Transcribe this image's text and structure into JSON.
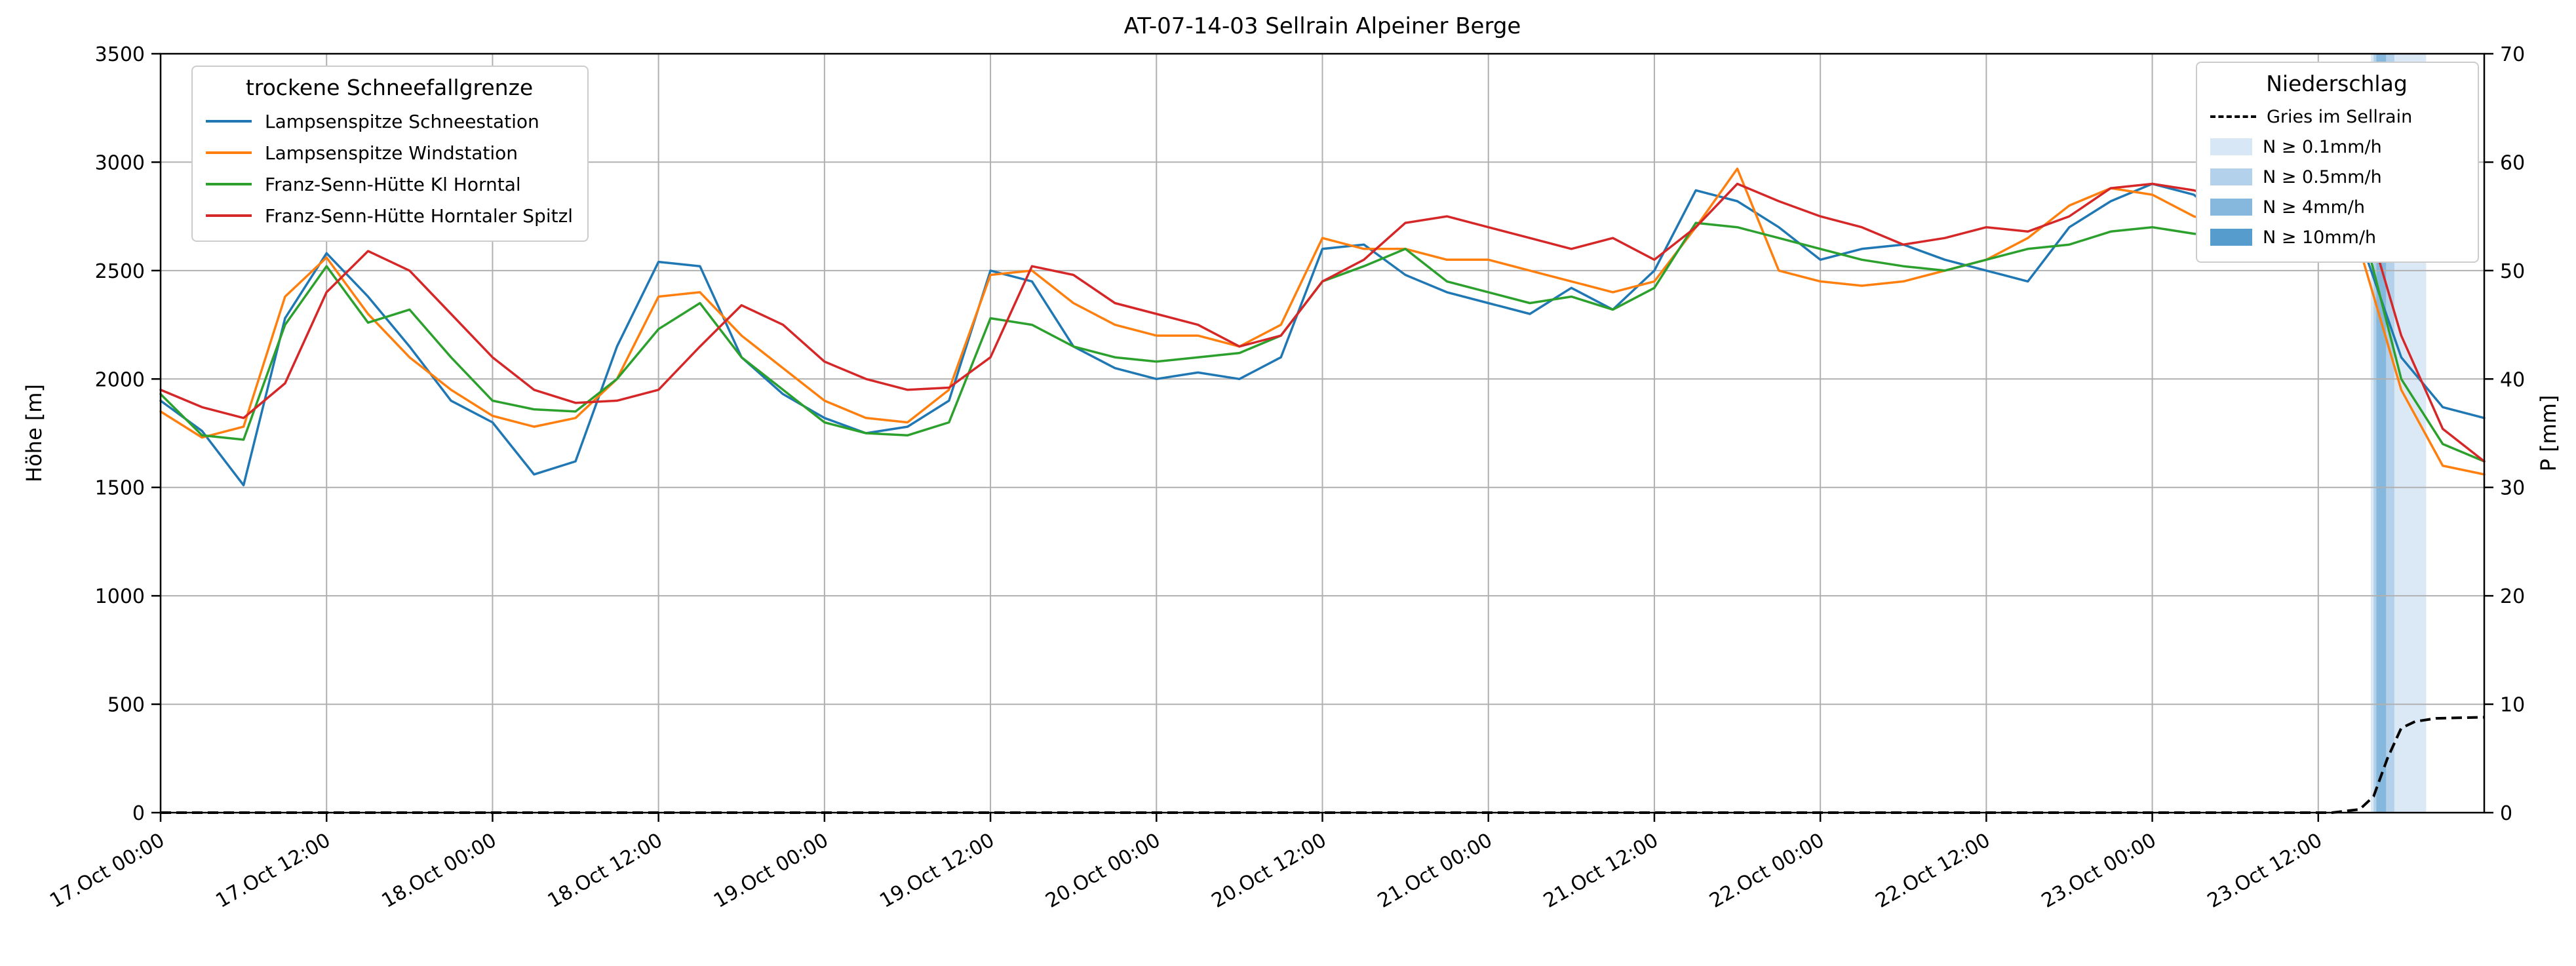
{
  "chart_data": {
    "type": "line",
    "title": "AT-07-14-03 Sellrain Alpeiner Berge",
    "ylabel_left": "Höhe [m]",
    "ylabel_right": "P [mm]",
    "x_unit": "hours since 17.Oct 00:00",
    "x_range": [
      0,
      168
    ],
    "ylim_left": [
      0,
      3500
    ],
    "ylim_right": [
      0,
      70
    ],
    "grid": true,
    "yticks_left": [
      0,
      500,
      1000,
      1500,
      2000,
      2500,
      3000,
      3500
    ],
    "yticks_right": [
      0,
      10,
      20,
      30,
      40,
      50,
      60,
      70
    ],
    "xticks": [
      {
        "h": 0,
        "label": "17.Oct 00:00"
      },
      {
        "h": 12,
        "label": "17.Oct 12:00"
      },
      {
        "h": 24,
        "label": "18.Oct 00:00"
      },
      {
        "h": 36,
        "label": "18.Oct 12:00"
      },
      {
        "h": 48,
        "label": "19.Oct 00:00"
      },
      {
        "h": 60,
        "label": "19.Oct 12:00"
      },
      {
        "h": 72,
        "label": "20.Oct 00:00"
      },
      {
        "h": 84,
        "label": "20.Oct 12:00"
      },
      {
        "h": 96,
        "label": "21.Oct 00:00"
      },
      {
        "h": 108,
        "label": "21.Oct 12:00"
      },
      {
        "h": 120,
        "label": "22.Oct 00:00"
      },
      {
        "h": 132,
        "label": "22.Oct 12:00"
      },
      {
        "h": 144,
        "label": "23.Oct 00:00"
      },
      {
        "h": 156,
        "label": "23.Oct 12:00"
      }
    ],
    "x": [
      0,
      3,
      6,
      9,
      12,
      15,
      18,
      21,
      24,
      27,
      30,
      33,
      36,
      39,
      42,
      45,
      48,
      51,
      54,
      57,
      60,
      63,
      66,
      69,
      72,
      75,
      78,
      81,
      84,
      87,
      90,
      93,
      96,
      99,
      102,
      105,
      108,
      111,
      114,
      117,
      120,
      123,
      126,
      129,
      132,
      135,
      138,
      141,
      144,
      147,
      150,
      153,
      156,
      159,
      162,
      165,
      168
    ],
    "series": [
      {
        "name": "Lampsenspitze Schneestation",
        "color": "#1f77b4",
        "values": [
          1900,
          1760,
          1510,
          2280,
          2580,
          2380,
          2150,
          1900,
          1800,
          1560,
          1620,
          2150,
          2540,
          2520,
          2100,
          1930,
          1820,
          1750,
          1780,
          1900,
          2500,
          2450,
          2150,
          2050,
          2000,
          2030,
          2000,
          2100,
          2600,
          2620,
          2480,
          2400,
          2350,
          2300,
          2420,
          2320,
          2500,
          2870,
          2820,
          2700,
          2550,
          2600,
          2620,
          2550,
          2500,
          2450,
          2700,
          2820,
          2900,
          2850,
          2700,
          2650,
          2600,
          2650,
          2100,
          1870,
          1820
        ]
      },
      {
        "name": "Lampsenspitze Windstation",
        "color": "#ff7f0e",
        "values": [
          1850,
          1730,
          1780,
          2380,
          2560,
          2300,
          2100,
          1950,
          1830,
          1780,
          1820,
          2000,
          2380,
          2400,
          2200,
          2050,
          1900,
          1820,
          1800,
          1950,
          2480,
          2500,
          2350,
          2250,
          2200,
          2200,
          2150,
          2250,
          2650,
          2600,
          2600,
          2550,
          2550,
          2500,
          2450,
          2400,
          2450,
          2700,
          2970,
          2500,
          2450,
          2430,
          2450,
          2500,
          2550,
          2650,
          2800,
          2880,
          2850,
          2750,
          2700,
          2680,
          2650,
          2600,
          1950,
          1600,
          1560
        ]
      },
      {
        "name": "Franz-Senn-Hütte Kl Horntal",
        "color": "#2ca02c",
        "values": [
          1930,
          1740,
          1720,
          2250,
          2520,
          2260,
          2320,
          2100,
          1900,
          1860,
          1850,
          2000,
          2230,
          2350,
          2100,
          1950,
          1800,
          1750,
          1740,
          1800,
          2280,
          2250,
          2150,
          2100,
          2080,
          2100,
          2120,
          2200,
          2450,
          2520,
          2600,
          2450,
          2400,
          2350,
          2380,
          2320,
          2420,
          2720,
          2700,
          2650,
          2600,
          2550,
          2520,
          2500,
          2550,
          2600,
          2620,
          2680,
          2700,
          2670,
          2650,
          2650,
          2700,
          2750,
          2000,
          1700,
          1620
        ]
      },
      {
        "name": "Franz-Senn-Hütte Horntaler Spitzl",
        "color": "#d62728",
        "values": [
          1950,
          1870,
          1820,
          1980,
          2400,
          2590,
          2500,
          2300,
          2100,
          1950,
          1890,
          1900,
          1950,
          2150,
          2340,
          2250,
          2080,
          2000,
          1950,
          1960,
          2100,
          2520,
          2480,
          2350,
          2300,
          2250,
          2150,
          2200,
          2450,
          2550,
          2720,
          2750,
          2700,
          2650,
          2600,
          2650,
          2550,
          2700,
          2900,
          2820,
          2750,
          2700,
          2620,
          2650,
          2700,
          2680,
          2750,
          2880,
          2900,
          2870,
          2820,
          2800,
          2830,
          2850,
          2200,
          1770,
          1620
        ]
      }
    ],
    "precipitation_line": {
      "name": "Gries im Sellrain",
      "style": "dashed",
      "color": "#000000",
      "unit": "mm",
      "points": [
        [
          0,
          0
        ],
        [
          30,
          0
        ],
        [
          60,
          0
        ],
        [
          90,
          0
        ],
        [
          120,
          0
        ],
        [
          150,
          0
        ],
        [
          157,
          0
        ],
        [
          159,
          0.3
        ],
        [
          160,
          1.5
        ],
        [
          161,
          5.0
        ],
        [
          162,
          7.8
        ],
        [
          163,
          8.4
        ],
        [
          164.5,
          8.7
        ],
        [
          168,
          8.8
        ]
      ]
    },
    "precipitation_bands": [
      {
        "threshold": "N ≥ 0.1mm/h",
        "start_h": 159.8,
        "end_h": 163.8,
        "color": "#dbe9f6"
      },
      {
        "threshold": "N ≥ 0.5mm/h",
        "start_h": 160.0,
        "end_h": 161.5,
        "color": "#b3d1ea"
      },
      {
        "threshold": "N ≥ 4mm/h",
        "start_h": 160.2,
        "end_h": 160.9,
        "color": "#85b8dc"
      }
    ],
    "legend_snowline": {
      "title": "trockene Schneefallgrenze",
      "items": [
        {
          "label": "Lampsenspitze Schneestation",
          "color": "#1f77b4"
        },
        {
          "label": "Lampsenspitze Windstation",
          "color": "#ff7f0e"
        },
        {
          "label": "Franz-Senn-Hütte Kl Horntal",
          "color": "#2ca02c"
        },
        {
          "label": "Franz-Senn-Hütte Horntaler Spitzl",
          "color": "#d62728"
        }
      ]
    },
    "legend_precip": {
      "title": "Niederschlag",
      "line_item": {
        "label": "Gries im Sellrain",
        "color": "#000000"
      },
      "band_items": [
        {
          "label": "N ≥ 0.1mm/h",
          "color": "#d8e7f5"
        },
        {
          "label": "N ≥ 0.5mm/h",
          "color": "#b3d1ea"
        },
        {
          "label": "N ≥ 4mm/h",
          "color": "#85b8dc"
        },
        {
          "label": "N ≥ 10mm/h",
          "color": "#569dcd"
        }
      ]
    },
    "style": {
      "grid_color": "#b0b0b0",
      "spine_color": "#000000",
      "background": "#ffffff"
    }
  }
}
